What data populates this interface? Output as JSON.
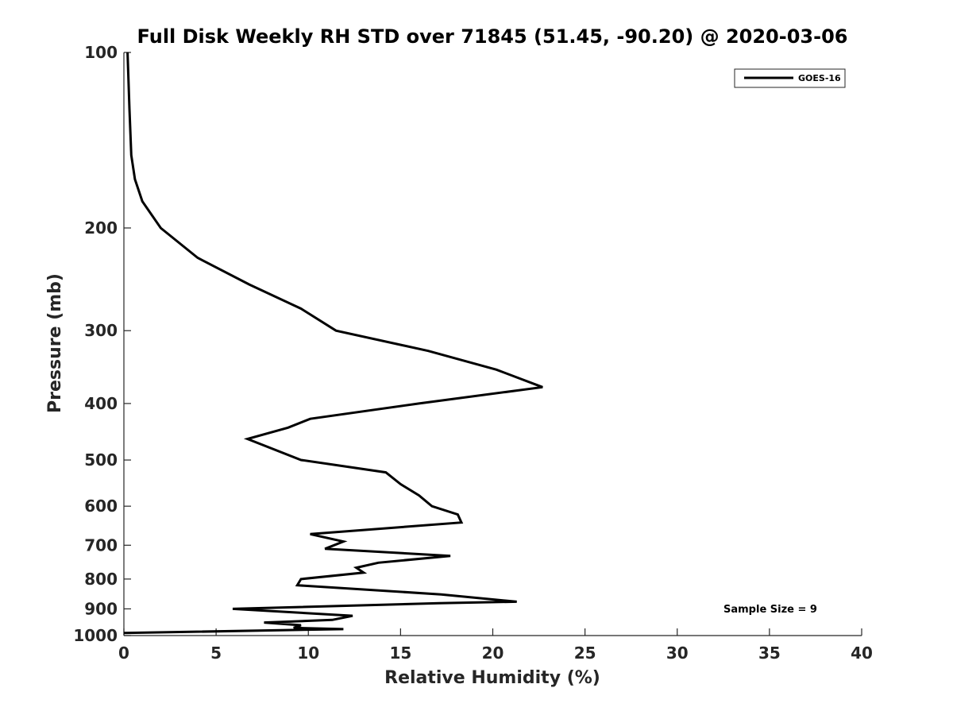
{
  "chart_data": {
    "type": "line",
    "title": "Full Disk Weekly RH STD over 71845 (51.45, -90.20) @ 2020-03-06",
    "xlabel": "Relative Humidity (%)",
    "ylabel": "Pressure (mb)",
    "xlim": [
      0,
      40
    ],
    "ylim": [
      100,
      1000
    ],
    "yscale": "log",
    "y_reversed": true,
    "xticks": [
      0,
      5,
      10,
      15,
      20,
      25,
      30,
      35,
      40
    ],
    "yticks": [
      100,
      200,
      300,
      400,
      500,
      600,
      700,
      800,
      900,
      1000
    ],
    "grid": false,
    "legend": "top-right",
    "annotation": "Sample Size = 9",
    "series": [
      {
        "name": "GOES-16",
        "color": "#000000",
        "points": [
          [
            0.2,
            100
          ],
          [
            0.3,
            125
          ],
          [
            0.4,
            150
          ],
          [
            0.6,
            165
          ],
          [
            1.0,
            180
          ],
          [
            2.0,
            200
          ],
          [
            4.0,
            225
          ],
          [
            6.8,
            250
          ],
          [
            9.6,
            275
          ],
          [
            11.5,
            300
          ],
          [
            16.5,
            325
          ],
          [
            20.2,
            350
          ],
          [
            22.7,
            375
          ],
          [
            16.0,
            400
          ],
          [
            10.1,
            425
          ],
          [
            8.9,
            440
          ],
          [
            6.7,
            460
          ],
          [
            9.6,
            500
          ],
          [
            14.2,
            525
          ],
          [
            15.0,
            550
          ],
          [
            16.0,
            575
          ],
          [
            16.7,
            600
          ],
          [
            18.1,
            620
          ],
          [
            18.3,
            640
          ],
          [
            10.1,
            670
          ],
          [
            11.9,
            690
          ],
          [
            10.9,
            710
          ],
          [
            17.7,
            730
          ],
          [
            13.8,
            750
          ],
          [
            12.6,
            765
          ],
          [
            13.0,
            780
          ],
          [
            9.6,
            800
          ],
          [
            9.4,
            820
          ],
          [
            17.2,
            850
          ],
          [
            21.3,
            875
          ],
          [
            17.1,
            880
          ],
          [
            5.9,
            900
          ],
          [
            12.4,
            925
          ],
          [
            11.3,
            940
          ],
          [
            7.6,
            950
          ],
          [
            9.6,
            960
          ],
          [
            9.2,
            970
          ],
          [
            11.9,
            975
          ],
          [
            0.0,
            990
          ]
        ]
      }
    ]
  }
}
